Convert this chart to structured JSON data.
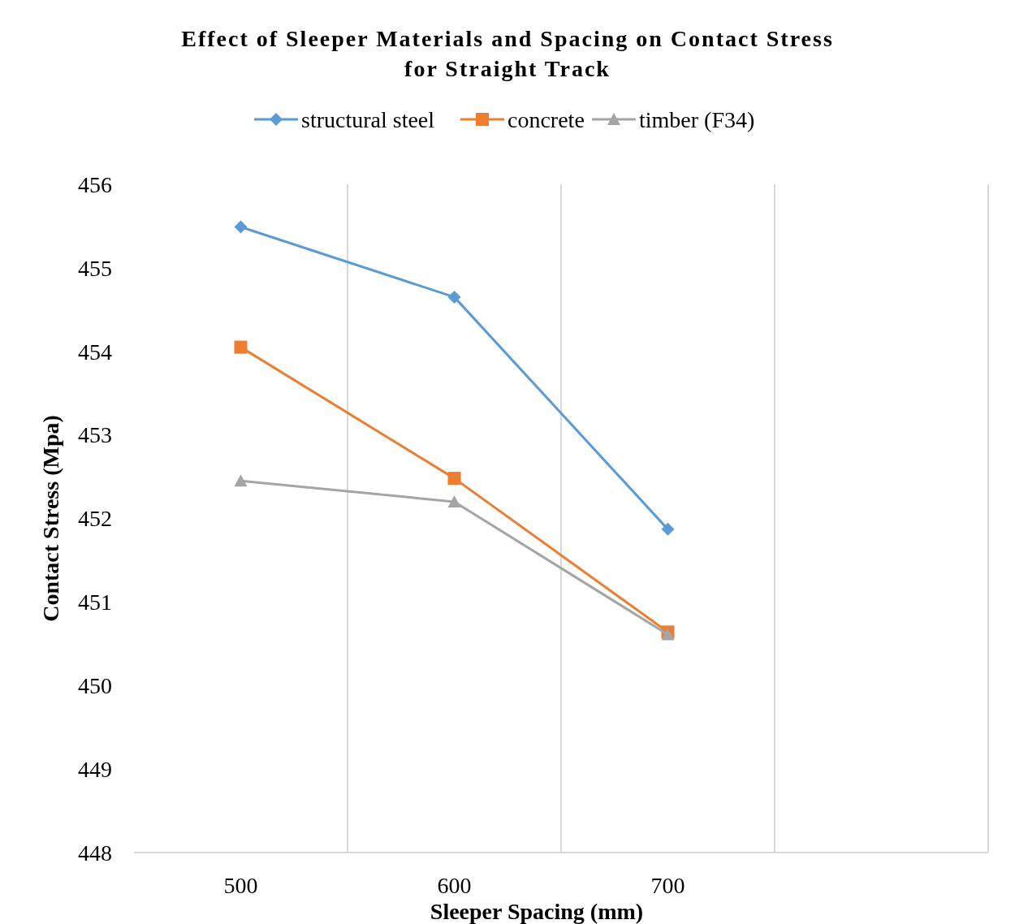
{
  "chart_data": {
    "type": "line",
    "title": "Effect of Sleeper Materials and Spacing on Contact Stress\nfor Straight Track",
    "xlabel": "Sleeper Spacing (mm)",
    "ylabel": "Contact Stress (Mpa)",
    "categories": [
      "500",
      "600",
      "700",
      null
    ],
    "series": [
      {
        "name": "structural steel",
        "color": "#5b9bd5",
        "marker": "diamond",
        "values": [
          455.49,
          454.65,
          451.87,
          null
        ]
      },
      {
        "name": "concrete",
        "color": "#ed7d31",
        "marker": "square",
        "values": [
          454.05,
          452.48,
          450.64,
          null
        ]
      },
      {
        "name": "timber (F34)",
        "color": "#a5a5a5",
        "marker": "triangle",
        "values": [
          452.45,
          452.2,
          450.61,
          null
        ]
      }
    ],
    "ylim": [
      448,
      456
    ],
    "yticks": [
      448,
      449,
      450,
      451,
      452,
      453,
      454,
      455,
      456
    ],
    "grid": "x",
    "legend": "top"
  }
}
